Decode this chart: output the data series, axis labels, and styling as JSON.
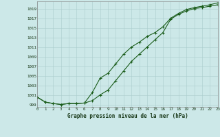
{
  "line1_x": [
    0,
    1,
    2,
    3,
    4,
    5,
    6,
    7,
    8,
    9,
    10,
    11,
    12,
    13,
    14,
    15,
    16,
    17,
    18,
    19,
    20,
    21,
    22,
    23
  ],
  "line1_y": [
    1000.5,
    999.5,
    999.2,
    999.0,
    999.2,
    999.2,
    999.3,
    999.8,
    1001.0,
    1002.0,
    1004.0,
    1006.0,
    1008.0,
    1009.5,
    1011.0,
    1012.5,
    1014.0,
    1016.8,
    1017.8,
    1018.5,
    1019.0,
    1019.2,
    1019.5,
    1019.8
  ],
  "line2_x": [
    0,
    1,
    2,
    3,
    4,
    5,
    6,
    7,
    8,
    9,
    10,
    11,
    12,
    13,
    14,
    15,
    16,
    17,
    18,
    19,
    20,
    21,
    22,
    23
  ],
  "line2_y": [
    1000.5,
    999.5,
    999.2,
    999.0,
    999.2,
    999.2,
    999.3,
    1001.5,
    1004.5,
    1005.5,
    1007.5,
    1009.5,
    1011.0,
    1012.0,
    1013.2,
    1014.0,
    1015.2,
    1017.0,
    1018.0,
    1018.8,
    1019.2,
    1019.5,
    1019.8,
    1020.2
  ],
  "yticks": [
    999,
    1001,
    1003,
    1005,
    1007,
    1009,
    1011,
    1013,
    1015,
    1017,
    1019
  ],
  "xticks": [
    0,
    1,
    2,
    3,
    4,
    5,
    6,
    7,
    8,
    9,
    10,
    11,
    12,
    13,
    14,
    15,
    16,
    17,
    18,
    19,
    20,
    21,
    22,
    23
  ],
  "xlabel": "Graphe pression niveau de la mer (hPa)",
  "xlim": [
    0,
    23
  ],
  "ylim": [
    998.5,
    1020.5
  ],
  "line_color": "#1a5c1a",
  "bg_color": "#cce8e8",
  "plot_bg": "#cce8e8",
  "grid_color": "#aacccc"
}
